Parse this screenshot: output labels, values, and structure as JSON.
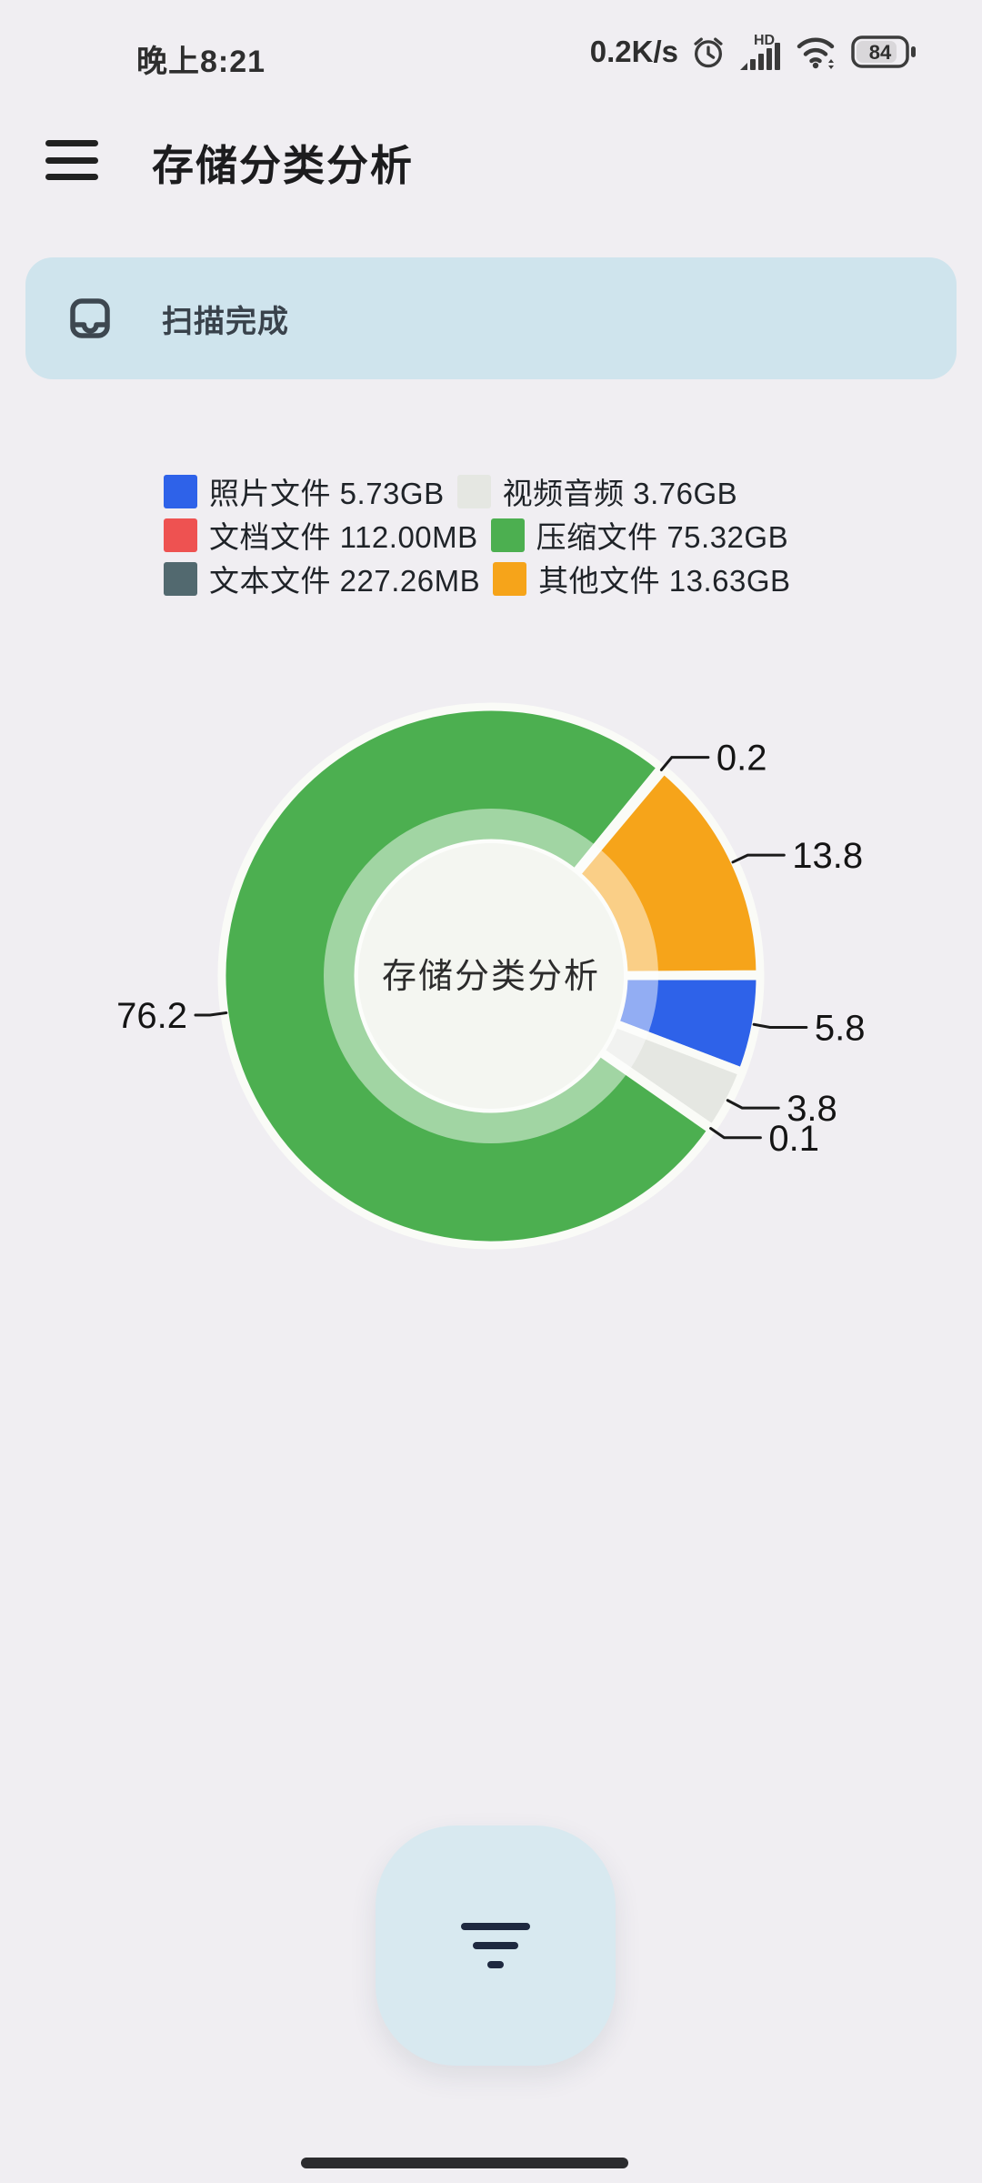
{
  "status_bar": {
    "time": "晚上8:21",
    "network_speed": "0.2K/s",
    "signal_label": "HD",
    "battery_level": "84",
    "icons": [
      "alarm-clock-icon",
      "cell-signal-icon",
      "wifi-icon",
      "battery-icon"
    ]
  },
  "app_bar": {
    "title": "存储分类分析",
    "menu_icon": "hamburger-menu-icon"
  },
  "scan_card": {
    "text": "扫描完成",
    "icon": "scan-complete-icon",
    "background": "#cfe4ed"
  },
  "chart_data": {
    "type": "pie",
    "title": "存储分类分析",
    "center_label": "存储分类分析",
    "start_angle_deg": 90,
    "direction": "clockwise",
    "donut": true,
    "legend_position": "top",
    "series": [
      {
        "name": "照片文件",
        "size_label": "5.73GB",
        "percent": 5.8,
        "color": "#2e62e9"
      },
      {
        "name": "视频音频",
        "size_label": "3.76GB",
        "percent": 3.8,
        "color": "#e5e7e2"
      },
      {
        "name": "文档文件",
        "size_label": "112.00MB",
        "percent": 0.1,
        "color": "#ee5251"
      },
      {
        "name": "压缩文件",
        "size_label": "75.32GB",
        "percent": 76.2,
        "color": "#4caf50"
      },
      {
        "name": "文本文件",
        "size_label": "227.26MB",
        "percent": 0.2,
        "color": "#52696f"
      },
      {
        "name": "其他文件",
        "size_label": "13.63GB",
        "percent": 13.8,
        "color": "#f6a41a"
      }
    ]
  },
  "fab": {
    "icon": "filter-icon"
  },
  "gesture_bar": {
    "icon": "home-gesture-bar"
  }
}
